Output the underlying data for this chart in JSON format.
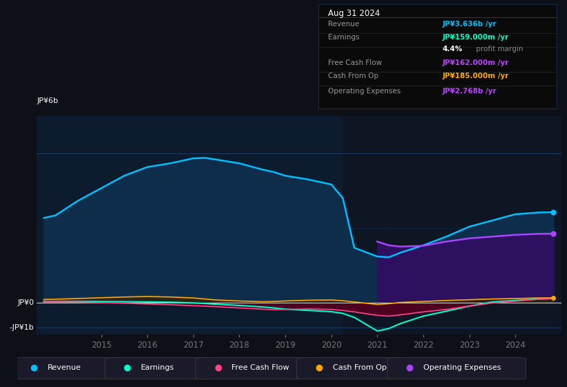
{
  "background_color": "#0d1117",
  "chart_bg": "#0d1b2e",
  "title": "Aug 31 2024",
  "ylabel_top": "JP¥6b",
  "ylabel_zero": "JP¥0",
  "ylabel_bot": "-JP¥1b",
  "ylim": [
    -1.3,
    7.5
  ],
  "years": [
    2013.75,
    2014.0,
    2014.5,
    2015.0,
    2015.5,
    2016.0,
    2016.5,
    2017.0,
    2017.25,
    2017.5,
    2018.0,
    2018.5,
    2018.75,
    2019.0,
    2019.5,
    2020.0,
    2020.25,
    2020.5,
    2021.0,
    2021.25,
    2021.5,
    2022.0,
    2022.5,
    2023.0,
    2023.5,
    2024.0,
    2024.5,
    2024.83
  ],
  "revenue": [
    3.4,
    3.5,
    4.1,
    4.6,
    5.1,
    5.45,
    5.6,
    5.8,
    5.82,
    5.75,
    5.6,
    5.35,
    5.25,
    5.1,
    4.95,
    4.75,
    4.2,
    2.2,
    1.85,
    1.82,
    2.0,
    2.3,
    2.65,
    3.05,
    3.3,
    3.55,
    3.62,
    3.636
  ],
  "op_expenses": [
    null,
    null,
    null,
    null,
    null,
    null,
    null,
    null,
    null,
    null,
    null,
    null,
    null,
    null,
    null,
    null,
    null,
    null,
    2.45,
    2.3,
    2.25,
    2.28,
    2.45,
    2.58,
    2.65,
    2.72,
    2.76,
    2.768
  ],
  "earnings": [
    0.04,
    0.04,
    0.04,
    0.035,
    0.03,
    0.02,
    0.01,
    -0.02,
    -0.04,
    -0.07,
    -0.12,
    -0.18,
    -0.22,
    -0.27,
    -0.32,
    -0.37,
    -0.44,
    -0.6,
    -1.15,
    -1.05,
    -0.85,
    -0.55,
    -0.35,
    -0.15,
    0.02,
    0.08,
    0.14,
    0.159
  ],
  "free_cash_flow": [
    0.02,
    0.02,
    0.01,
    -0.01,
    -0.03,
    -0.06,
    -0.09,
    -0.13,
    -0.15,
    -0.17,
    -0.22,
    -0.27,
    -0.29,
    -0.28,
    -0.26,
    -0.28,
    -0.32,
    -0.38,
    -0.52,
    -0.55,
    -0.5,
    -0.38,
    -0.28,
    -0.15,
    -0.02,
    0.05,
    0.13,
    0.162
  ],
  "cash_from_op": [
    0.12,
    0.13,
    0.16,
    0.19,
    0.22,
    0.24,
    0.22,
    0.18,
    0.14,
    0.1,
    0.06,
    0.03,
    0.04,
    0.06,
    0.09,
    0.1,
    0.07,
    0.02,
    -0.08,
    -0.05,
    0.0,
    0.04,
    0.08,
    0.11,
    0.14,
    0.16,
    0.18,
    0.185
  ],
  "revenue_color": "#00bfff",
  "revenue_fill": "#0e2d4a",
  "op_expenses_color": "#aa44ff",
  "op_expenses_fill": "#2d1060",
  "earnings_color": "#00ffcc",
  "free_cash_flow_color": "#ff4488",
  "cash_from_op_color": "#ffaa00",
  "fcf_fill_neg": "#550020",
  "fcf_fill_pos": "#003322",
  "gridline_color": "#1e3a5f",
  "zero_line_color": "#cccccc",
  "tick_color": "#777777",
  "xticks": [
    2015,
    2016,
    2017,
    2018,
    2019,
    2020,
    2021,
    2022,
    2023,
    2024
  ],
  "legend_items": [
    {
      "label": "Revenue",
      "color": "#00bfff"
    },
    {
      "label": "Earnings",
      "color": "#00ffcc"
    },
    {
      "label": "Free Cash Flow",
      "color": "#ff4488"
    },
    {
      "label": "Cash From Op",
      "color": "#ffaa00"
    },
    {
      "label": "Operating Expenses",
      "color": "#aa44ff"
    }
  ],
  "info_box": {
    "title": "Aug 31 2024",
    "bg": "#0a0a0a",
    "border": "#333333",
    "rows": [
      {
        "label": "Revenue",
        "value": "JP¥3.636b /yr",
        "value_color": "#00bfff",
        "label_color": "#999999"
      },
      {
        "label": "Earnings",
        "value": "JP¥159.000m /yr",
        "value_color": "#00ffcc",
        "label_color": "#999999"
      },
      {
        "label": "",
        "value": "4.4%",
        "value2": " profit margin",
        "value_color": "#ffffff",
        "label_color": ""
      },
      {
        "label": "Free Cash Flow",
        "value": "JP¥162.000m /yr",
        "value_color": "#bb44ff",
        "label_color": "#999999"
      },
      {
        "label": "Cash From Op",
        "value": "JP¥185.000m /yr",
        "value_color": "#ffaa00",
        "label_color": "#999999"
      },
      {
        "label": "Operating Expenses",
        "value": "JP¥2.768b /yr",
        "value_color": "#bb44ff",
        "label_color": "#999999"
      }
    ]
  }
}
